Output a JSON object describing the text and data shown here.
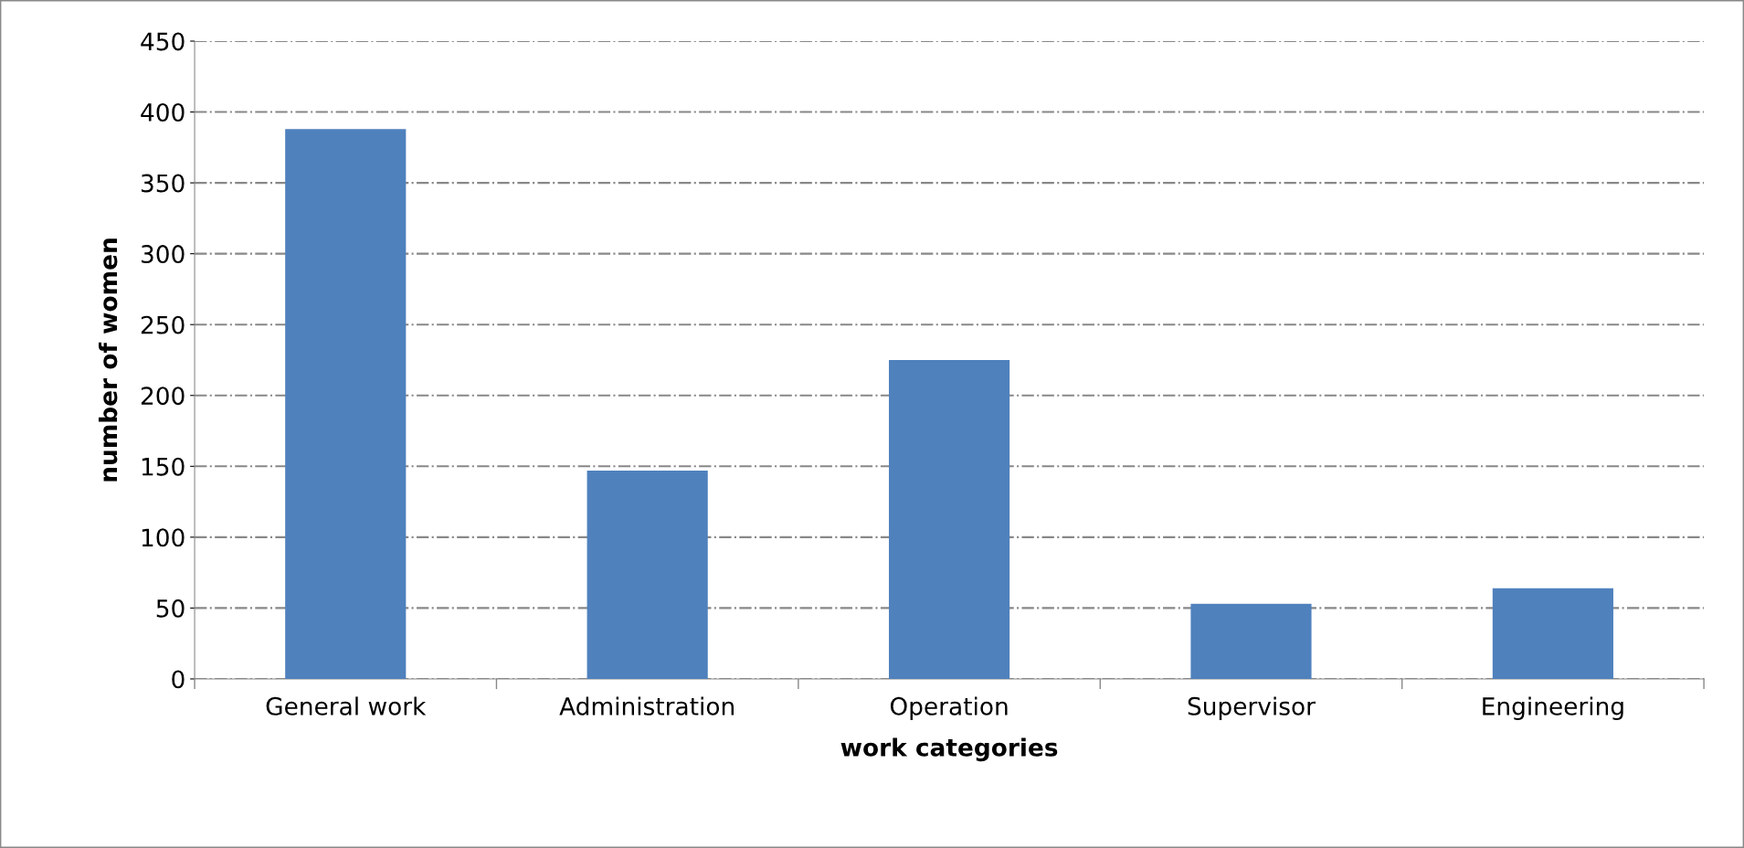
{
  "chart_data": {
    "type": "bar",
    "xlabel": "work categories",
    "ylabel": "number of women",
    "categories": [
      "General work",
      "Administration",
      "Operation",
      "Supervisor",
      "Engineering"
    ],
    "values": [
      388,
      147,
      225,
      53,
      64
    ],
    "color": "#4f81bd",
    "ylim": [
      0,
      450
    ],
    "yticks": [
      0,
      50,
      100,
      150,
      200,
      250,
      300,
      350,
      400,
      450
    ],
    "grid": "y",
    "line_style": "dashdot"
  }
}
